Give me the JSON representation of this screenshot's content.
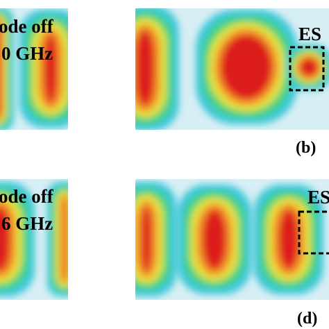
{
  "panels": [
    {
      "label_lines": [
        "ode off",
        "0 GHz"
      ]
    },
    {
      "region_label": "ES",
      "tag": "(b)"
    },
    {
      "label_lines": [
        "ode off",
        "6 GHz"
      ]
    },
    {
      "region_label": "ES",
      "tag": "(d)"
    }
  ]
}
